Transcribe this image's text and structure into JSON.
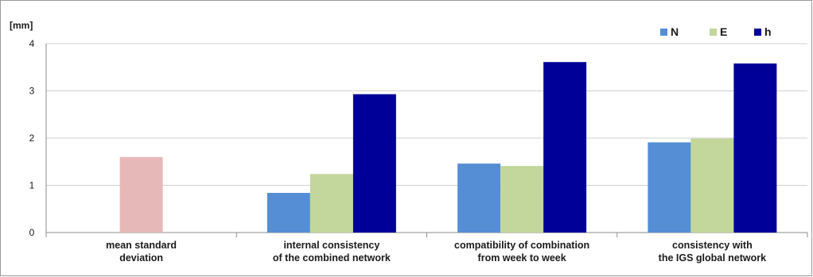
{
  "chart_data": {
    "type": "bar",
    "ylabel": "[mm]",
    "ylim": [
      0,
      4
    ],
    "yticks": [
      "0",
      "1",
      "2",
      "3",
      "4"
    ],
    "grid": true,
    "legend_position": "top-right",
    "categories": [
      [
        "mean standard",
        "deviation"
      ],
      [
        "internal consistency",
        "of the combined network"
      ],
      [
        "compatibility of combination",
        "from week to week"
      ],
      [
        "consistency with",
        "the IGS global network"
      ]
    ],
    "series": [
      {
        "name": "N",
        "color": "#558ed5",
        "values": [
          null,
          0.84,
          1.46,
          1.91
        ]
      },
      {
        "name": "E",
        "color": "#c3d69b",
        "values": [
          null,
          1.24,
          1.41,
          1.99
        ]
      },
      {
        "name": "h",
        "color": "#000099",
        "values": [
          null,
          2.93,
          3.61,
          3.58
        ]
      }
    ],
    "extra_bars": [
      {
        "category_index": 0,
        "value": 1.6,
        "color": "#e6b9b8"
      }
    ]
  }
}
